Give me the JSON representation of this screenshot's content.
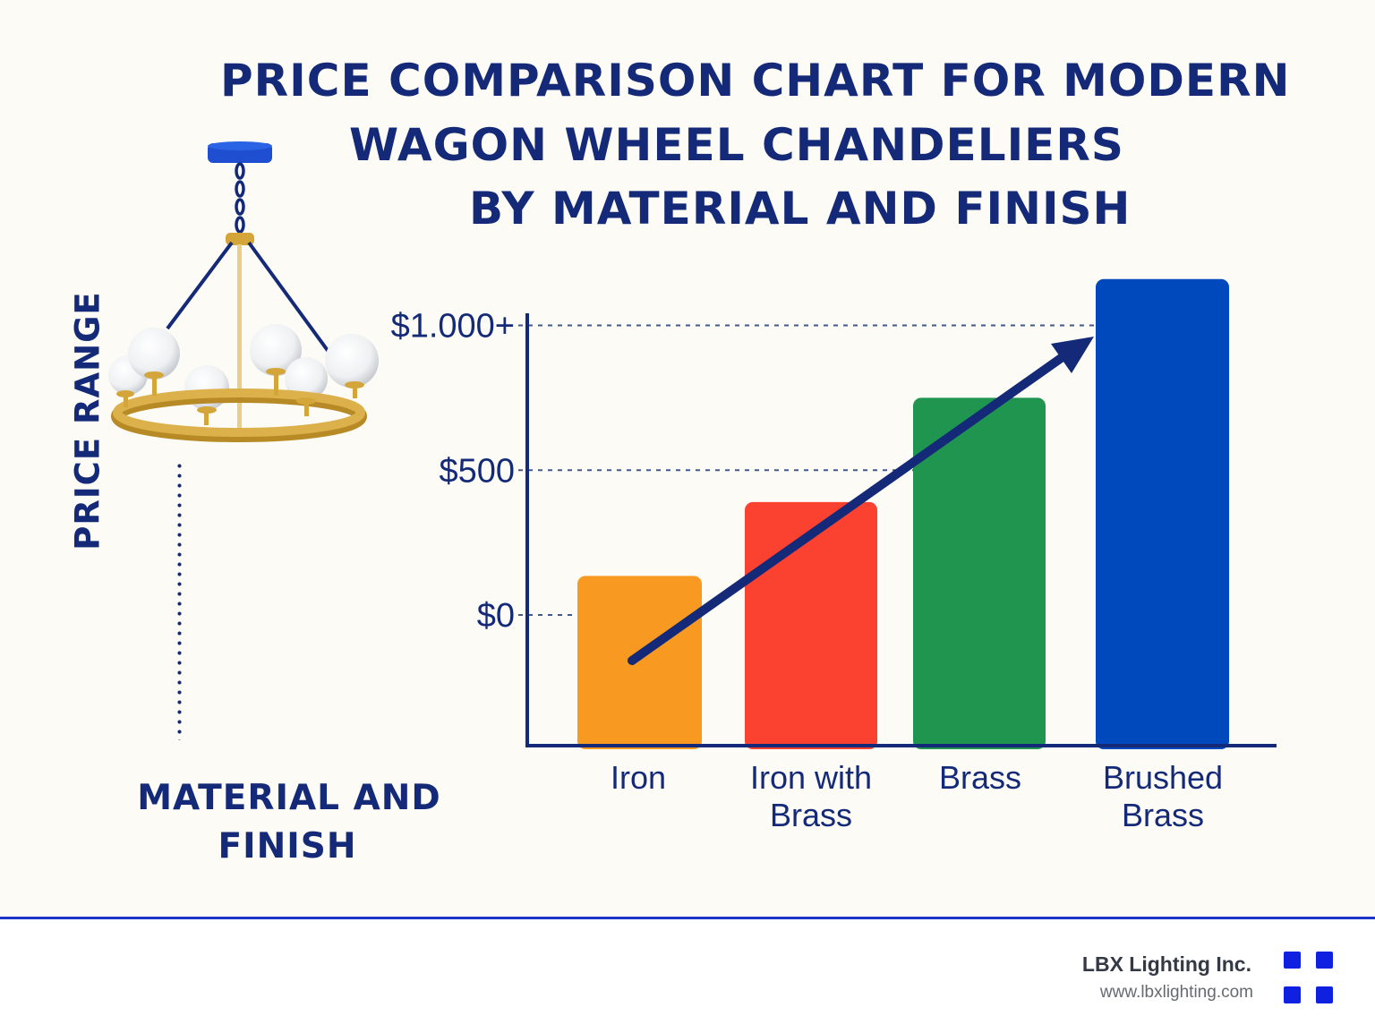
{
  "title": {
    "lines": [
      "PRICE COMPARISON CHART FOR MODERN",
      "WAGON WHEEL CHANDELIERS",
      "BY MATERIAL AND FINISH"
    ]
  },
  "chart_data": {
    "type": "bar",
    "categories": [
      "Iron",
      "Iron with\nBrass",
      "Brass",
      "Brushed\nBrass"
    ],
    "values": [
      135,
      390,
      750,
      1160
    ],
    "ylabel": "PRICE RANGE",
    "xlabel": "MATERIAL AND\nFINISH",
    "ylim": [
      -450,
      1300
    ],
    "y_ticks": [
      {
        "value": 0,
        "label": "$0"
      },
      {
        "value": 500,
        "label": "$500"
      },
      {
        "value": 1000,
        "label": "$1.000+"
      }
    ],
    "grid": "dashed lines at tick values",
    "bar_colors": [
      "#f89a22",
      "#fb4130",
      "#1f9550",
      "#0049bd"
    ],
    "trend_arrow": {
      "from_category": "Iron",
      "to_category": "Brushed\nBrass",
      "direction": "increasing"
    },
    "legend": "none"
  },
  "colors": {
    "title": "#142a78",
    "axis": "#142a78",
    "panel_background": "#fcfbf6",
    "divider": "#1e35c8",
    "chandelier_gold": "#d4a63a",
    "logo": "#1020e0"
  },
  "illustration": {
    "icon": "wagon-wheel-chandelier-icon"
  },
  "footer": {
    "company": "LBX Lighting Inc.",
    "url": "www.lbxlighting.com",
    "logo_icon": "four-squares-logo-icon"
  }
}
